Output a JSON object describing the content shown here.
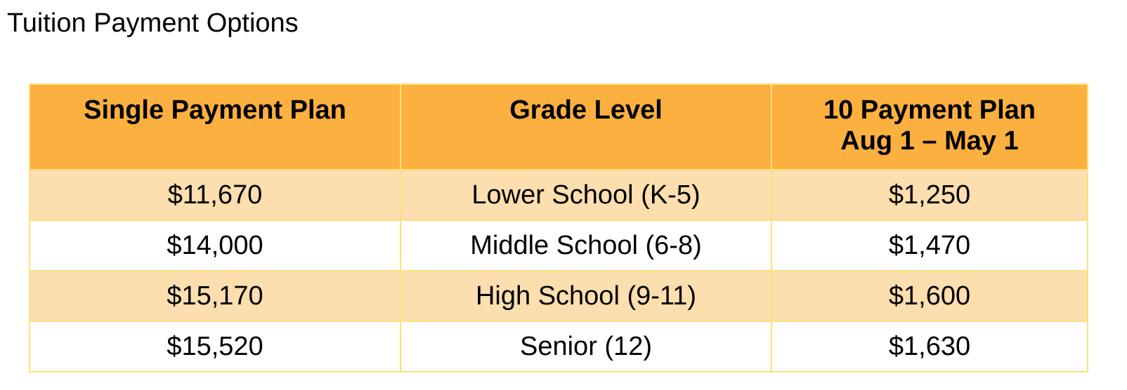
{
  "title": "Tuition Payment Options",
  "table": {
    "headers": [
      "Single Payment Plan",
      "Grade Level",
      "10 Payment Plan",
      "Aug 1 – May 1"
    ],
    "rows": [
      {
        "single": "$11,670",
        "grade": "Lower School (K-5)",
        "ten": "$1,250"
      },
      {
        "single": "$14,000",
        "grade": "Middle School (6-8)",
        "ten": "$1,470"
      },
      {
        "single": "$15,170",
        "grade": "High School (9-11)",
        "ten": "$1,600"
      },
      {
        "single": "$15,520",
        "grade": "Senior (12)",
        "ten": "$1,630"
      }
    ]
  },
  "colors": {
    "header": "#FCB040",
    "shaded_row": "#FDDEAE",
    "border": "#FFE07A"
  }
}
